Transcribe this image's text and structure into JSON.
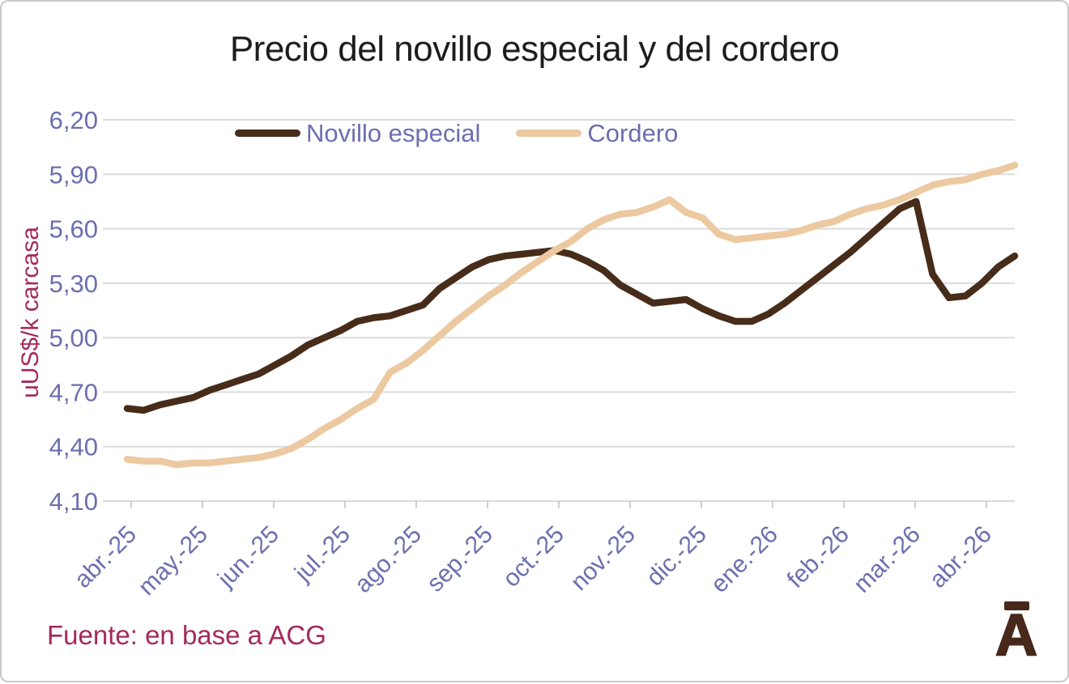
{
  "page": {
    "source_note": "Fuente: en base a ACG",
    "logo_letter": "A"
  },
  "chart_data": {
    "type": "line",
    "title": "Precio del novillo especial y del cordero",
    "xlabel": "",
    "ylabel": "uUS$/k carcasa",
    "ylim": [
      4.1,
      6.2
    ],
    "y_ticks": [
      6.2,
      5.9,
      5.6,
      5.3,
      5.0,
      4.7,
      4.4,
      4.1
    ],
    "y_tick_labels": [
      "6,20",
      "5,90",
      "5,60",
      "5,30",
      "5,00",
      "4,70",
      "4,40",
      "4,10"
    ],
    "x_tick_labels": [
      "abr.-25",
      "may.-25",
      "jun.-25",
      "jul.-25",
      "ago.-25",
      "sep.-25",
      "oct.-25",
      "nov.-25",
      "dic.-25",
      "ene.-26",
      "feb.-26",
      "mar.-26",
      "abr.-26"
    ],
    "x_frequency": "weekly",
    "grid": true,
    "legend_position": "top-center",
    "series": [
      {
        "name": "Novillo especial",
        "color": "#472c1a",
        "values": [
          4.61,
          4.6,
          4.63,
          4.65,
          4.67,
          4.71,
          4.74,
          4.77,
          4.8,
          4.85,
          4.9,
          4.96,
          5.0,
          5.04,
          5.09,
          5.11,
          5.12,
          5.15,
          5.18,
          5.27,
          5.33,
          5.39,
          5.43,
          5.45,
          5.46,
          5.47,
          5.48,
          5.46,
          5.42,
          5.37,
          5.29,
          5.24,
          5.19,
          5.2,
          5.21,
          5.16,
          5.12,
          5.09,
          5.09,
          5.13,
          5.19,
          5.26,
          5.33,
          5.4,
          5.47,
          5.55,
          5.63,
          5.71,
          5.75,
          5.35,
          5.22,
          5.23,
          5.3,
          5.39,
          5.45
        ]
      },
      {
        "name": "Cordero",
        "color": "#ecc9a0",
        "values": [
          4.33,
          4.32,
          4.32,
          4.3,
          4.31,
          4.31,
          4.32,
          4.33,
          4.34,
          4.36,
          4.39,
          4.44,
          4.5,
          4.55,
          4.61,
          4.66,
          4.81,
          4.86,
          4.93,
          5.01,
          5.09,
          5.16,
          5.23,
          5.29,
          5.36,
          5.42,
          5.48,
          5.53,
          5.6,
          5.65,
          5.68,
          5.69,
          5.72,
          5.76,
          5.69,
          5.66,
          5.57,
          5.54,
          5.55,
          5.56,
          5.57,
          5.59,
          5.62,
          5.64,
          5.68,
          5.71,
          5.73,
          5.76,
          5.8,
          5.84,
          5.86,
          5.87,
          5.9,
          5.92,
          5.95
        ]
      }
    ]
  },
  "colors": {
    "axis_text": "#6c6fae",
    "accent_magenta": "#a42a5c",
    "title_text": "#1d1d1d",
    "gridline": "#dbdbdb",
    "tick": "#c0c0c0",
    "logo_brown": "#46291a",
    "background": "#ffffff",
    "border": "#c9c9c9"
  }
}
